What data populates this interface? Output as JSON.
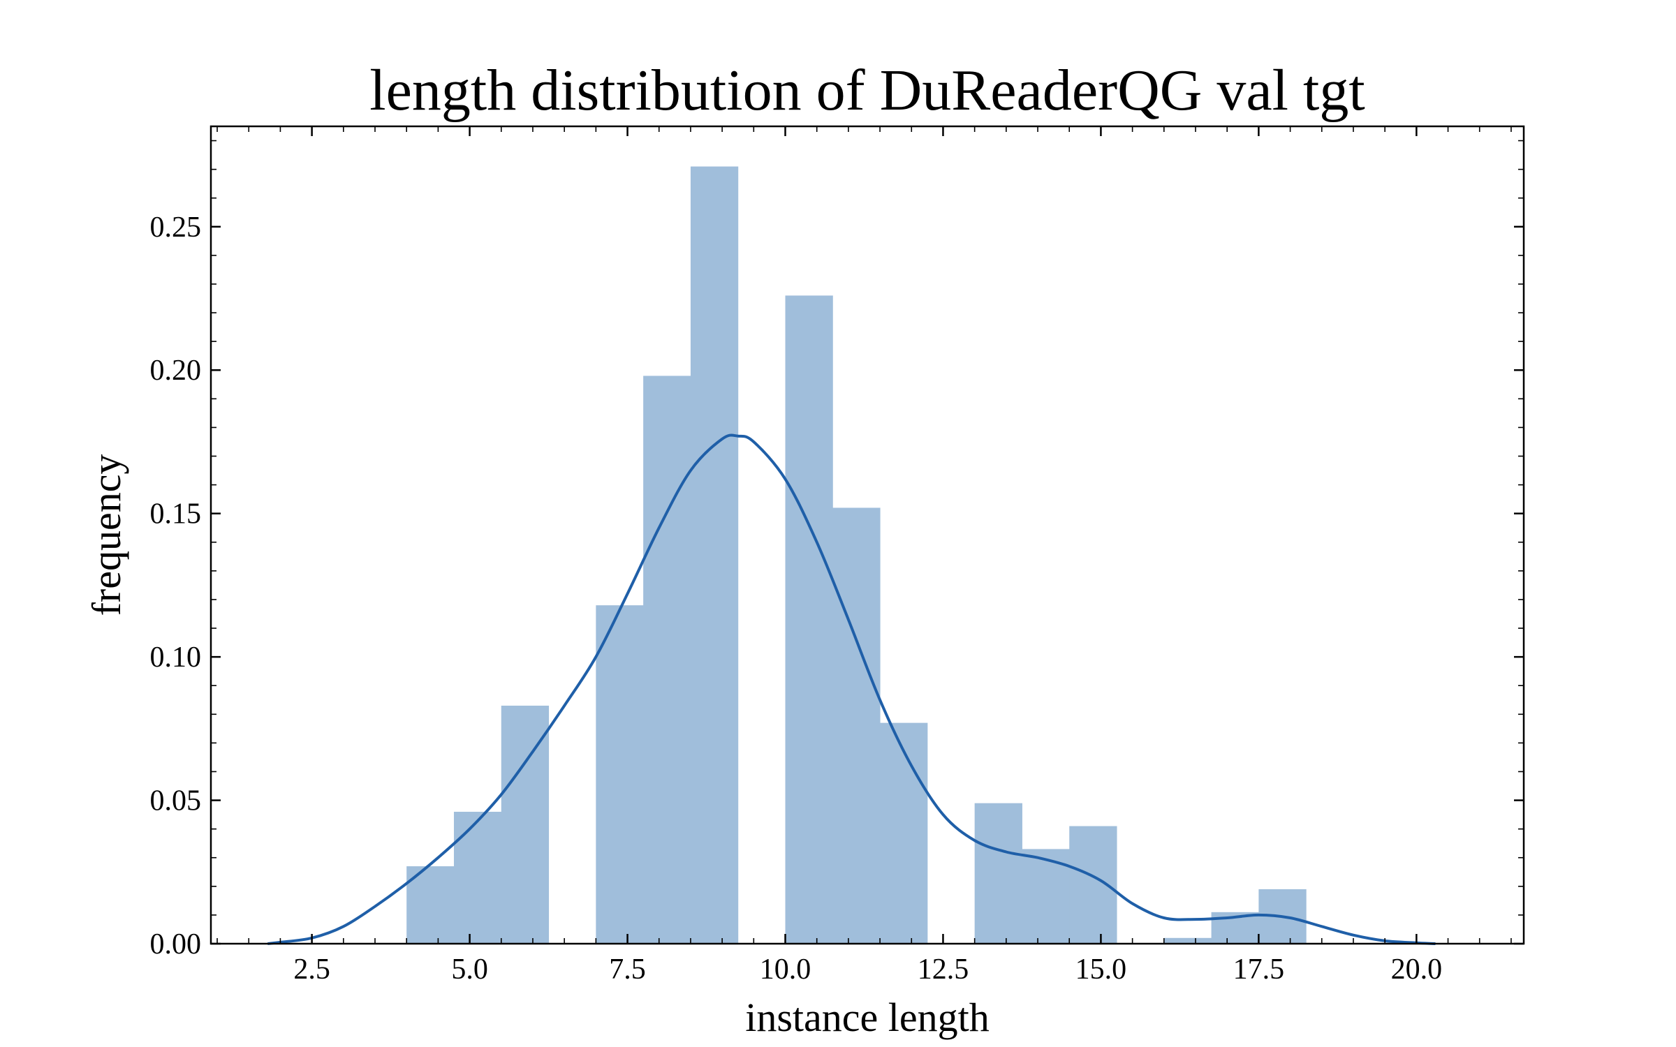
{
  "chart_data": {
    "type": "bar",
    "title": "length distribution of DuReaderQG val tgt",
    "xlabel": "instance length",
    "ylabel": "frequency",
    "xlim": [
      0.9,
      21.7
    ],
    "ylim": [
      0.0,
      0.285
    ],
    "x_ticks": [
      2.5,
      5.0,
      7.5,
      10.0,
      12.5,
      15.0,
      17.5,
      20.0
    ],
    "x_tick_labels": [
      "2.5",
      "5.0",
      "7.5",
      "10.0",
      "12.5",
      "15.0",
      "17.5",
      "20.0"
    ],
    "y_ticks": [
      0.0,
      0.05,
      0.1,
      0.15,
      0.2,
      0.25
    ],
    "y_tick_labels": [
      "0.00",
      "0.05",
      "0.10",
      "0.15",
      "0.20",
      "0.25"
    ],
    "grid": false,
    "colors": {
      "bars": "#a0bedb",
      "kde": "#1f5fa8",
      "frame": "#000000"
    },
    "histogram": {
      "bins": [
        {
          "x0": 4.0,
          "x1": 4.75,
          "value": 0.027
        },
        {
          "x0": 4.75,
          "x1": 5.5,
          "value": 0.046
        },
        {
          "x0": 5.5,
          "x1": 6.25,
          "value": 0.083
        },
        {
          "x0": 6.25,
          "x1": 7.0,
          "value": 0.0
        },
        {
          "x0": 7.0,
          "x1": 7.75,
          "value": 0.118
        },
        {
          "x0": 7.75,
          "x1": 8.5,
          "value": 0.198
        },
        {
          "x0": 8.5,
          "x1": 9.25,
          "value": 0.271
        },
        {
          "x0": 9.25,
          "x1": 10.0,
          "value": 0.0
        },
        {
          "x0": 10.0,
          "x1": 10.75,
          "value": 0.226
        },
        {
          "x0": 10.75,
          "x1": 11.5,
          "value": 0.152
        },
        {
          "x0": 11.5,
          "x1": 12.25,
          "value": 0.077
        },
        {
          "x0": 12.25,
          "x1": 13.0,
          "value": 0.0
        },
        {
          "x0": 13.0,
          "x1": 13.75,
          "value": 0.049
        },
        {
          "x0": 13.75,
          "x1": 14.5,
          "value": 0.033
        },
        {
          "x0": 14.5,
          "x1": 15.25,
          "value": 0.041
        },
        {
          "x0": 15.25,
          "x1": 16.0,
          "value": 0.0
        },
        {
          "x0": 16.0,
          "x1": 16.75,
          "value": 0.002
        },
        {
          "x0": 16.75,
          "x1": 17.5,
          "value": 0.011
        },
        {
          "x0": 17.5,
          "x1": 18.25,
          "value": 0.019
        }
      ]
    },
    "kde": {
      "x": [
        1.8,
        2.0,
        2.5,
        3.0,
        3.5,
        4.0,
        4.5,
        5.0,
        5.5,
        6.0,
        6.5,
        7.0,
        7.5,
        8.0,
        8.5,
        9.0,
        9.25,
        9.5,
        10.0,
        10.5,
        11.0,
        11.5,
        12.0,
        12.5,
        13.0,
        13.5,
        14.0,
        14.5,
        15.0,
        15.5,
        16.0,
        16.5,
        17.0,
        17.5,
        18.0,
        18.5,
        19.0,
        19.5,
        20.0,
        20.3
      ],
      "y": [
        0.0,
        0.0005,
        0.002,
        0.006,
        0.013,
        0.021,
        0.03,
        0.04,
        0.052,
        0.067,
        0.083,
        0.1,
        0.122,
        0.145,
        0.165,
        0.176,
        0.177,
        0.175,
        0.162,
        0.14,
        0.113,
        0.085,
        0.062,
        0.045,
        0.036,
        0.032,
        0.03,
        0.027,
        0.022,
        0.014,
        0.009,
        0.0085,
        0.009,
        0.01,
        0.009,
        0.006,
        0.003,
        0.001,
        0.0003,
        0.0
      ]
    }
  }
}
